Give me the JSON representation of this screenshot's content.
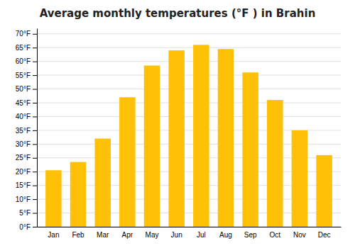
{
  "chart_data": {
    "type": "bar",
    "title": "Average monthly temperatures (°F ) in Brahin",
    "categories": [
      "Jan",
      "Feb",
      "Mar",
      "Apr",
      "May",
      "Jun",
      "Jul",
      "Aug",
      "Sep",
      "Oct",
      "Nov",
      "Dec"
    ],
    "values": [
      20.5,
      23.5,
      32.0,
      47.0,
      58.5,
      64.0,
      66.0,
      64.5,
      56.0,
      46.0,
      35.0,
      26.0
    ],
    "color": "#FFC107",
    "ylim": [
      0,
      72
    ],
    "yticks": [
      {
        "value": 0,
        "label": "0°F"
      },
      {
        "value": 5,
        "label": "5°F"
      },
      {
        "value": 10,
        "label": "10°F"
      },
      {
        "value": 15,
        "label": "15°F"
      },
      {
        "value": 20,
        "label": "20°F"
      },
      {
        "value": 25,
        "label": "25°F"
      },
      {
        "value": 30,
        "label": "30°F"
      },
      {
        "value": 35,
        "label": "35°F"
      },
      {
        "value": 40,
        "label": "40°F"
      },
      {
        "value": 45,
        "label": "45°F"
      },
      {
        "value": 50,
        "label": "50°F"
      },
      {
        "value": 55,
        "label": "55°F"
      },
      {
        "value": 60,
        "label": "60°F"
      },
      {
        "value": 65,
        "label": "65°F"
      },
      {
        "value": 70,
        "label": "70°F"
      }
    ],
    "grid": true
  }
}
